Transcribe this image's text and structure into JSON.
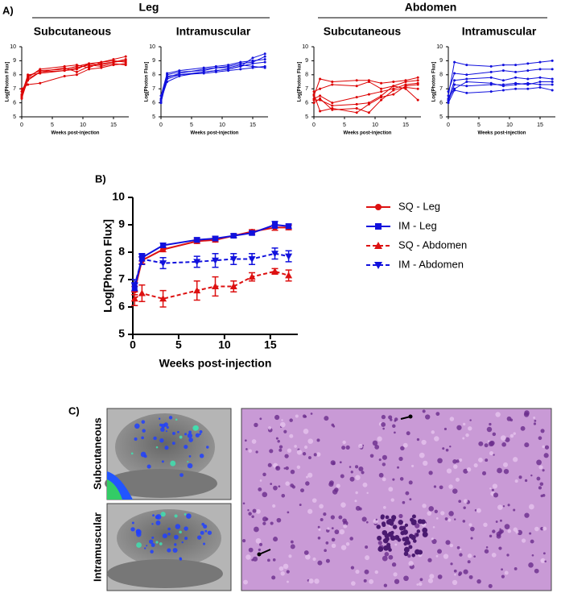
{
  "labels": {
    "panel_a": "A)",
    "panel_b": "B)",
    "panel_c": "C)",
    "group_leg": "Leg",
    "group_abdomen": "Abdomen",
    "image_row_1": "Subcutaneous",
    "image_row_2": "Intramuscular"
  },
  "chart_data": [
    {
      "type": "line",
      "title": "Subcutaneous",
      "x_label": "Weeks post-injection",
      "y_label": "Log[Photon Flux]",
      "xlim": [
        0,
        17.5
      ],
      "ylim": [
        5,
        10
      ],
      "xticks": [
        0,
        5,
        10,
        15
      ],
      "yticks": [
        5,
        6,
        7,
        8,
        9,
        10
      ],
      "x": [
        0,
        1,
        3,
        7,
        9,
        11,
        13,
        15,
        17
      ],
      "series": [
        {
          "color": "#dd0000",
          "values": [
            6.5,
            7.9,
            8.3,
            8.4,
            8.6,
            8.8,
            8.9,
            9.1,
            9.3
          ]
        },
        {
          "color": "#dd0000",
          "values": [
            6.3,
            7.7,
            8.2,
            8.5,
            8.2,
            8.6,
            8.8,
            8.9,
            9.0
          ]
        },
        {
          "color": "#dd0000",
          "values": [
            7.0,
            7.3,
            7.4,
            7.9,
            8.0,
            8.4,
            8.5,
            8.7,
            8.8
          ]
        },
        {
          "color": "#dd0000",
          "values": [
            6.8,
            7.8,
            8.4,
            8.6,
            8.7,
            8.5,
            8.9,
            9.0,
            8.9
          ]
        },
        {
          "color": "#dd0000",
          "values": [
            6.6,
            8.0,
            8.1,
            8.3,
            8.5,
            8.7,
            8.6,
            8.8,
            8.7
          ]
        },
        {
          "color": "#dd0000",
          "values": [
            6.4,
            7.6,
            8.2,
            8.3,
            8.4,
            8.8,
            8.7,
            8.9,
            9.1
          ]
        }
      ]
    },
    {
      "type": "line",
      "title": "Intramuscular",
      "x_label": "Weeks post-injection",
      "y_label": "Log[Photon Flux]",
      "xlim": [
        0,
        17.5
      ],
      "ylim": [
        5,
        10
      ],
      "xticks": [
        0,
        5,
        10,
        15
      ],
      "yticks": [
        5,
        6,
        7,
        8,
        9,
        10
      ],
      "x": [
        0,
        1,
        3,
        7,
        9,
        11,
        13,
        15,
        17
      ],
      "series": [
        {
          "color": "#1010dd",
          "values": [
            6.1,
            7.7,
            8.0,
            8.2,
            8.3,
            8.4,
            8.6,
            9.2,
            9.5
          ]
        },
        {
          "color": "#1010dd",
          "values": [
            6.0,
            7.8,
            8.1,
            8.4,
            8.5,
            8.6,
            8.8,
            8.9,
            9.3
          ]
        },
        {
          "color": "#1010dd",
          "values": [
            6.3,
            8.0,
            8.2,
            8.3,
            8.5,
            8.5,
            8.7,
            8.6,
            8.5
          ]
        },
        {
          "color": "#1010dd",
          "values": [
            6.2,
            7.5,
            7.9,
            8.2,
            8.3,
            8.4,
            8.6,
            8.8,
            8.9
          ]
        },
        {
          "color": "#1010dd",
          "values": [
            6.5,
            8.1,
            8.3,
            8.5,
            8.6,
            8.7,
            8.9,
            9.0,
            9.1
          ]
        },
        {
          "color": "#1010dd",
          "values": [
            6.0,
            7.9,
            8.0,
            8.1,
            8.2,
            8.3,
            8.4,
            8.5,
            8.6
          ]
        }
      ]
    },
    {
      "type": "line",
      "title": "Subcutaneous",
      "x_label": "Weeks post-injection",
      "y_label": "Log[Photon Flux]",
      "xlim": [
        0,
        17.5
      ],
      "ylim": [
        5,
        10
      ],
      "xticks": [
        0,
        5,
        10,
        15
      ],
      "yticks": [
        5,
        6,
        7,
        8,
        9,
        10
      ],
      "x": [
        0,
        1,
        3,
        7,
        9,
        11,
        13,
        15,
        17
      ],
      "series": [
        {
          "color": "#dd0000",
          "values": [
            6.5,
            7.7,
            7.5,
            7.6,
            7.6,
            7.4,
            7.5,
            7.6,
            7.8
          ]
        },
        {
          "color": "#dd0000",
          "values": [
            6.8,
            7.0,
            7.3,
            7.2,
            7.5,
            7.0,
            7.2,
            7.5,
            7.6
          ]
        },
        {
          "color": "#dd0000",
          "values": [
            6.3,
            6.5,
            6.0,
            6.4,
            6.6,
            6.8,
            7.0,
            7.3,
            7.4
          ]
        },
        {
          "color": "#dd0000",
          "values": [
            6.2,
            6.2,
            5.8,
            5.9,
            6.0,
            6.5,
            7.2,
            7.0,
            6.2
          ]
        },
        {
          "color": "#dd0000",
          "values": [
            6.0,
            6.3,
            5.5,
            5.6,
            5.3,
            6.2,
            6.9,
            7.1,
            7.0
          ]
        },
        {
          "color": "#dd0000",
          "values": [
            6.6,
            5.4,
            5.6,
            5.3,
            5.9,
            6.4,
            6.6,
            7.2,
            7.3
          ]
        }
      ]
    },
    {
      "type": "line",
      "title": "Intramuscular",
      "x_label": "Weeks post-injection",
      "y_label": "Log[Photon Flux]",
      "xlim": [
        0,
        17.5
      ],
      "ylim": [
        5,
        10
      ],
      "xticks": [
        0,
        5,
        10,
        15
      ],
      "yticks": [
        5,
        6,
        7,
        8,
        9,
        10
      ],
      "x": [
        0,
        1,
        3,
        7,
        9,
        11,
        13,
        15,
        17
      ],
      "series": [
        {
          "color": "#1010dd",
          "values": [
            6.5,
            8.9,
            8.7,
            8.6,
            8.7,
            8.7,
            8.8,
            8.9,
            9.0
          ]
        },
        {
          "color": "#1010dd",
          "values": [
            6.8,
            8.1,
            8.0,
            8.2,
            8.3,
            8.2,
            8.3,
            8.4,
            8.4
          ]
        },
        {
          "color": "#1010dd",
          "values": [
            6.2,
            7.6,
            7.7,
            7.8,
            7.6,
            7.8,
            7.7,
            7.8,
            7.7
          ]
        },
        {
          "color": "#1010dd",
          "values": [
            6.1,
            7.3,
            7.2,
            7.3,
            7.3,
            7.4,
            7.3,
            7.5,
            7.5
          ]
        },
        {
          "color": "#1010dd",
          "values": [
            6.3,
            7.0,
            7.5,
            7.4,
            7.2,
            7.3,
            7.4,
            7.3,
            7.3
          ]
        },
        {
          "color": "#1010dd",
          "values": [
            6.0,
            6.9,
            6.7,
            6.8,
            6.9,
            7.0,
            7.0,
            7.1,
            6.9
          ]
        }
      ]
    },
    {
      "type": "errorline",
      "x_label": "Weeks post-injection",
      "y_label": "Log[Photon Flux]",
      "xlim": [
        0,
        18
      ],
      "ylim": [
        5,
        10
      ],
      "xticks": [
        0,
        5,
        10,
        15
      ],
      "yticks": [
        5,
        6,
        7,
        8,
        9,
        10
      ],
      "legend": "right",
      "x": [
        0.2,
        1,
        3.3,
        7,
        9,
        11,
        13,
        15.5,
        17
      ],
      "series": [
        {
          "name": "SQ - Leg",
          "color": "#dd1111",
          "marker": "circle",
          "linestyle": "solid",
          "values": [
            6.6,
            7.7,
            8.1,
            8.4,
            8.45,
            8.6,
            8.75,
            8.9,
            8.9
          ],
          "errors": [
            0.15,
            0.12,
            0.08,
            0.08,
            0.08,
            0.07,
            0.07,
            0.1,
            0.08
          ]
        },
        {
          "name": "IM - Leg",
          "color": "#1111dd",
          "marker": "square",
          "linestyle": "solid",
          "values": [
            6.7,
            7.8,
            8.25,
            8.45,
            8.5,
            8.6,
            8.7,
            9.0,
            8.95
          ],
          "errors": [
            0.15,
            0.12,
            0.08,
            0.08,
            0.08,
            0.07,
            0.07,
            0.12,
            0.08
          ]
        },
        {
          "name": "SQ - Abdomen",
          "color": "#dd1111",
          "marker": "triangle",
          "linestyle": "dashed",
          "values": [
            6.3,
            6.5,
            6.3,
            6.6,
            6.75,
            6.75,
            7.1,
            7.3,
            7.15
          ],
          "errors": [
            0.25,
            0.3,
            0.3,
            0.35,
            0.35,
            0.2,
            0.15,
            0.1,
            0.2
          ]
        },
        {
          "name": "IM - Abdomen",
          "color": "#1111dd",
          "marker": "down-triangle",
          "linestyle": "dashed",
          "values": [
            6.8,
            7.75,
            7.6,
            7.65,
            7.7,
            7.75,
            7.75,
            7.95,
            7.85
          ],
          "errors": [
            0.2,
            0.2,
            0.2,
            0.2,
            0.25,
            0.2,
            0.2,
            0.2,
            0.2
          ]
        }
      ]
    }
  ]
}
